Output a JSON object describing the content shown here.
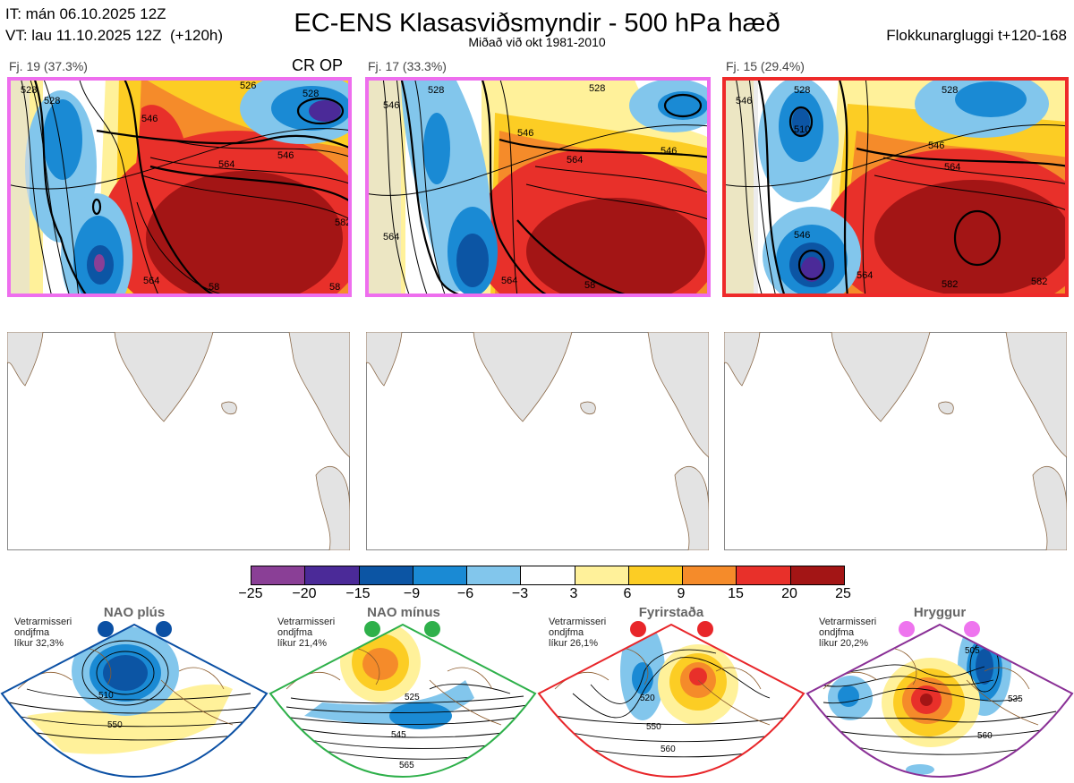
{
  "header": {
    "it_line": "IT: mán 06.10.2025 12Z",
    "vt_line": "VT: lau 11.10.2025 12Z  (+120h)",
    "title": "EC-ENS Klasasviðsmyndir - 500 hPa hæð",
    "subtitle": "Miðað við okt 1981-2010",
    "window": "Flokkunargluggi t+120-168"
  },
  "clusters": [
    {
      "label": "Fj. 19 (37.3%)",
      "op_label": "CR OP",
      "border_color": "#ee6eee",
      "contour_labels": [
        "528",
        "526",
        "528",
        "546",
        "564",
        "546",
        "528",
        "564",
        "582",
        "58",
        "58"
      ]
    },
    {
      "label": "Fj. 17 (33.3%)",
      "border_color": "#ee6eee",
      "contour_labels": [
        "546",
        "528",
        "528",
        "546",
        "564",
        "564",
        "546",
        "564",
        "58"
      ]
    },
    {
      "label": "Fj. 15 (29.4%)",
      "border_color": "#ee2a2a",
      "contour_labels": [
        "546",
        "528",
        "528",
        "510",
        "546",
        "564",
        "546",
        "564",
        "582",
        "582"
      ]
    }
  ],
  "colorbar": {
    "ticks": [
      "−25",
      "−20",
      "−15",
      "−9",
      "−6",
      "−3",
      "3",
      "6",
      "9",
      "15",
      "20",
      "25"
    ],
    "colors": [
      "#8a3f96",
      "#4b2a98",
      "#0c55a4",
      "#1a8ad4",
      "#82c6ec",
      "#ffffff",
      "#fff19a",
      "#fccd24",
      "#f58b2a",
      "#e8302a",
      "#a31515"
    ]
  },
  "regimes": [
    {
      "name": "NAO plús",
      "caption": [
        "Vetrarmisseri",
        "ondjfma",
        "líkur 32,3%"
      ],
      "dot_color": "#0b50a4",
      "frame_color": "#0b50a4",
      "contour_labels": [
        "510",
        "550"
      ]
    },
    {
      "name": "NAO mínus",
      "caption": [
        "Vetrarmisseri",
        "ondjfma",
        "líkur 21,4%"
      ],
      "dot_color": "#2eb04a",
      "frame_color": "#2eb04a",
      "contour_labels": [
        "525",
        "545",
        "565"
      ]
    },
    {
      "name": "Fyrirstaða",
      "caption": [
        "Vetrarmisseri",
        "ondjfma",
        "líkur 26,1%"
      ],
      "dot_color": "#e8262a",
      "frame_color": "#e8262a",
      "contour_labels": [
        "520",
        "550",
        "560"
      ]
    },
    {
      "name": "Hryggur",
      "caption": [
        "Vetrarmisseri",
        "ondjfma",
        "líkur 20,2%"
      ],
      "dot_color": "#ee74ee",
      "frame_color": "#8a3096",
      "contour_labels": [
        "505",
        "535",
        "560"
      ]
    }
  ]
}
